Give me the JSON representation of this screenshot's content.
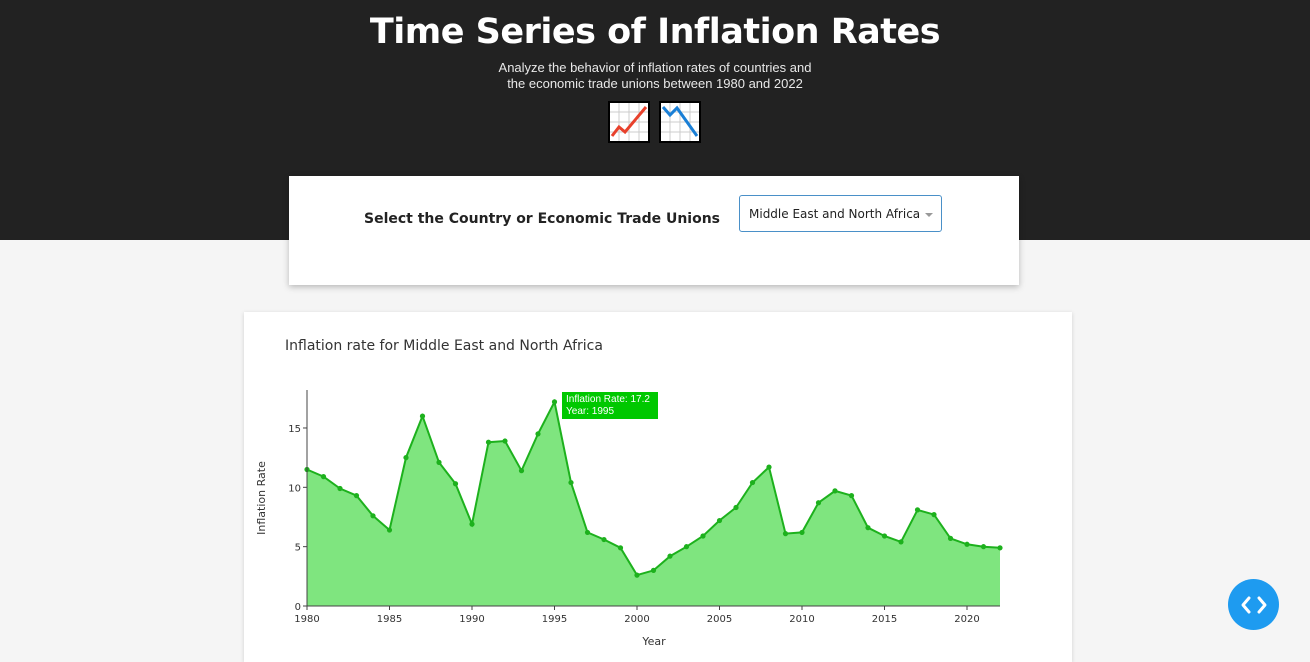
{
  "header": {
    "title": "Time Series of Inflation Rates",
    "subtitle_line1": "Analyze the behavior of inflation rates of countries and",
    "subtitle_line2": "the economic trade unions between 1980 and 2022",
    "icons": [
      "chart-increasing-icon",
      "chart-decreasing-icon"
    ]
  },
  "selector": {
    "label": "Select the Country or Economic Trade Unions",
    "selected_value": "Middle East and North Africa"
  },
  "tooltip": {
    "line1": "Inflation Rate: 17.2",
    "line2": "Year: 1995"
  },
  "fab": {
    "icon": "code-icon"
  },
  "colors": {
    "header_bg": "#222222",
    "line": "#1db11d",
    "fill": "#7fe57f",
    "tooltip_bg": "#00c800",
    "fab": "#1e9bf0"
  },
  "chart_data": {
    "type": "area",
    "title": "Inflation rate for Middle East and North Africa",
    "xlabel": "Year",
    "ylabel": "Inflation Rate",
    "x": [
      1980,
      1981,
      1982,
      1983,
      1984,
      1985,
      1986,
      1987,
      1988,
      1989,
      1990,
      1991,
      1992,
      1993,
      1994,
      1995,
      1996,
      1997,
      1998,
      1999,
      2000,
      2001,
      2002,
      2003,
      2004,
      2005,
      2006,
      2007,
      2008,
      2009,
      2010,
      2011,
      2012,
      2013,
      2014,
      2015,
      2016,
      2017,
      2018,
      2019,
      2020,
      2021,
      2022
    ],
    "values": [
      11.5,
      10.9,
      9.9,
      9.3,
      7.6,
      6.4,
      12.5,
      16.0,
      12.1,
      10.3,
      6.9,
      13.8,
      13.9,
      11.4,
      14.5,
      17.2,
      10.4,
      6.2,
      5.6,
      4.9,
      2.6,
      3.0,
      4.2,
      5.0,
      5.9,
      7.2,
      8.3,
      10.4,
      11.7,
      6.1,
      6.2,
      8.7,
      9.7,
      9.3,
      6.6,
      5.9,
      5.4,
      8.1,
      7.7,
      5.7,
      5.2,
      5.0,
      4.9
    ],
    "xticks": [
      "1980",
      "1985",
      "1990",
      "1995",
      "2000",
      "2005",
      "2010",
      "2015",
      "2020"
    ],
    "yticks": [
      "0",
      "5",
      "10",
      "15"
    ],
    "xlim": [
      1980,
      2022
    ],
    "ylim": [
      0,
      18.2
    ],
    "grid": false,
    "legend": "none"
  }
}
